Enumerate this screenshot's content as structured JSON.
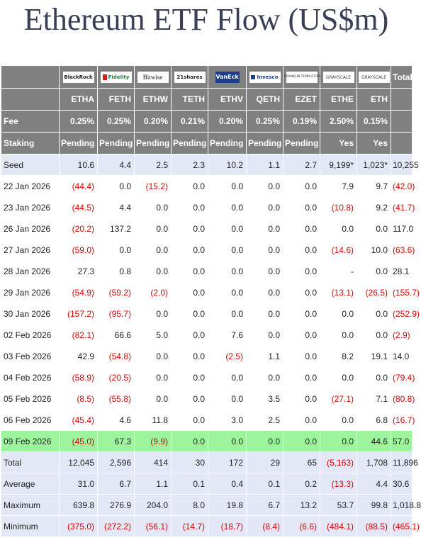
{
  "title": "Ethereum ETF Flow (US$m)",
  "issuers": [
    {
      "name": "BlackRock",
      "icon": "blackrock-logo"
    },
    {
      "name": "Fidelity",
      "icon": "fidelity-logo"
    },
    {
      "name": "Bitwise",
      "icon": "bitwise-logo"
    },
    {
      "name": "21shares",
      "icon": "21shares-logo"
    },
    {
      "name": "VanEck",
      "icon": "vaneck-logo"
    },
    {
      "name": "Invesco",
      "icon": "invesco-logo"
    },
    {
      "name": "FRANKLIN TEMPLETON",
      "icon": "franklin-templeton-logo"
    },
    {
      "name": "GRAYSCALE",
      "icon": "grayscale-logo"
    },
    {
      "name": "GRAYSCALE",
      "icon": "grayscale-logo"
    }
  ],
  "total_header": "Total",
  "tickers": [
    "ETHA",
    "FETH",
    "ETHW",
    "TETH",
    "ETHV",
    "QETH",
    "EZET",
    "ETHE",
    "ETH"
  ],
  "fee_label": "Fee",
  "fees": [
    "0.25%",
    "0.25%",
    "0.20%",
    "0.21%",
    "0.20%",
    "0.25%",
    "0.19%",
    "2.50%",
    "0.15%"
  ],
  "staking_label": "Staking",
  "staking": [
    "Pending",
    "Pending",
    "Pending",
    "Pending",
    "Pending",
    "Pending",
    "Pending",
    "Yes",
    "Yes"
  ],
  "rows": [
    {
      "label": "Seed",
      "cells": [
        "10.6",
        "4.4",
        "2.5",
        "2.3",
        "10.2",
        "1.1",
        "2.7",
        "9,199*",
        "1,023*",
        "10,255"
      ],
      "style": "band"
    },
    {
      "label": "22 Jan 2026",
      "cells": [
        "(44.4)",
        "0.0",
        "(15.2)",
        "0.0",
        "0.0",
        "0.0",
        "0.0",
        "7.9",
        "9.7",
        "(42.0)"
      ],
      "style": "white"
    },
    {
      "label": "23 Jan 2026",
      "cells": [
        "(44.5)",
        "4.4",
        "0.0",
        "0.0",
        "0.0",
        "0.0",
        "0.0",
        "(10.8)",
        "9.2",
        "(41.7)"
      ],
      "style": "white"
    },
    {
      "label": "26 Jan 2026",
      "cells": [
        "(20.2)",
        "137.2",
        "0.0",
        "0.0",
        "0.0",
        "0.0",
        "0.0",
        "0.0",
        "0.0",
        "117.0"
      ],
      "style": "white"
    },
    {
      "label": "27 Jan 2026",
      "cells": [
        "(59.0)",
        "0.0",
        "0.0",
        "0.0",
        "0.0",
        "0.0",
        "0.0",
        "(14.6)",
        "10.0",
        "(63.6)"
      ],
      "style": "white"
    },
    {
      "label": "28 Jan 2026",
      "cells": [
        "27.3",
        "0.8",
        "0.0",
        "0.0",
        "0.0",
        "0.0",
        "0.0",
        "-",
        "0.0",
        "28.1"
      ],
      "style": "white"
    },
    {
      "label": "29 Jan 2026",
      "cells": [
        "(54.9)",
        "(59.2)",
        "(2.0)",
        "0.0",
        "0.0",
        "0.0",
        "0.0",
        "(13.1)",
        "(26.5)",
        "(155.7)"
      ],
      "style": "white"
    },
    {
      "label": "30 Jan 2026",
      "cells": [
        "(157.2)",
        "(95.7)",
        "0.0",
        "0.0",
        "0.0",
        "0.0",
        "0.0",
        "0.0",
        "0.0",
        "(252.9)"
      ],
      "style": "white"
    },
    {
      "label": "02 Feb 2026",
      "cells": [
        "(82.1)",
        "66.6",
        "5.0",
        "0.0",
        "7.6",
        "0.0",
        "0.0",
        "0.0",
        "0.0",
        "(2.9)"
      ],
      "style": "white"
    },
    {
      "label": "03 Feb 2026",
      "cells": [
        "42.9",
        "(54.8)",
        "0.0",
        "0.0",
        "(2.5)",
        "1.1",
        "0.0",
        "8.2",
        "19.1",
        "14.0"
      ],
      "style": "white"
    },
    {
      "label": "04 Feb 2026",
      "cells": [
        "(58.9)",
        "(20.5)",
        "0.0",
        "0.0",
        "0.0",
        "0.0",
        "0.0",
        "0.0",
        "0.0",
        "(79.4)"
      ],
      "style": "white"
    },
    {
      "label": "05 Feb 2026",
      "cells": [
        "(8.5)",
        "(55.8)",
        "0.0",
        "0.0",
        "0.0",
        "3.5",
        "0.0",
        "(27.1)",
        "7.1",
        "(80.8)"
      ],
      "style": "white"
    },
    {
      "label": "06 Feb 2026",
      "cells": [
        "(45.4)",
        "4.6",
        "11.8",
        "0.0",
        "3.0",
        "2.5",
        "0.0",
        "0.0",
        "6.8",
        "(16.7)"
      ],
      "style": "white"
    },
    {
      "label": "09 Feb 2026",
      "cells": [
        "(45.0)",
        "67.3",
        "(9.9)",
        "0.0",
        "0.0",
        "0.0",
        "0.0",
        "0.0",
        "44.6",
        "57.0"
      ],
      "style": "hilite"
    },
    {
      "label": "Total",
      "cells": [
        "12,045",
        "2,596",
        "414",
        "30",
        "172",
        "29",
        "65",
        "(5,163)",
        "1,708",
        "11,896"
      ],
      "style": "band"
    },
    {
      "label": "Average",
      "cells": [
        "31.0",
        "6.7",
        "1.1",
        "0.1",
        "0.4",
        "0.1",
        "0.2",
        "(13.3)",
        "4.4",
        "30.6"
      ],
      "style": "band"
    },
    {
      "label": "Maximum",
      "cells": [
        "639.8",
        "276.9",
        "204.0",
        "8.0",
        "19.8",
        "6.7",
        "13.2",
        "53.7",
        "99.8",
        "1,018.8"
      ],
      "style": "band"
    },
    {
      "label": "Minimum",
      "cells": [
        "(375.0)",
        "(272.2)",
        "(56.1)",
        "(14.7)",
        "(18.7)",
        "(8.4)",
        "(6.6)",
        "(484.1)",
        "(88.5)",
        "(465.1)"
      ],
      "style": "band"
    }
  ],
  "colors": {
    "header_bg": "#808080",
    "band_bg": "#e4e8f6",
    "highlight_bg": "#9cf59c",
    "negative": "#e00000",
    "title": "#3a3f55"
  }
}
